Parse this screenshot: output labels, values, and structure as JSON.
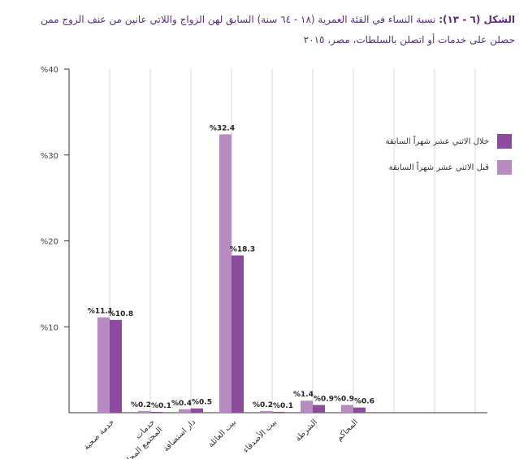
{
  "title": {
    "lead": "الشكل (٦ - ١٣):",
    "text": "نسبة النساء في الفئة العمرية (١٨ - ٦٤ سنة) السابق لهن الزواج واللاتي عانين من عنف الزوج ممن حصلن على خدمات أو اتصلن بالسلطات، مصر، ٢٠١٥"
  },
  "colors": {
    "before": "#b88ac2",
    "during": "#8c4a9e",
    "axis": "#333333",
    "grid": "#d6d6d6"
  },
  "chart_data": {
    "type": "bar",
    "title": "",
    "xlabel": "",
    "ylabel": "",
    "ylim": [
      0,
      40
    ],
    "yticks": [
      10,
      20,
      30,
      40
    ],
    "ytick_labels": [
      "%10",
      "%20",
      "%30",
      "%40"
    ],
    "grid": "vertical",
    "legend_position": "right",
    "categories": [
      "خدمة صحية",
      "خدمات المجتمع المحلي",
      "دار استضافة",
      "بيت العائلة",
      "بيت الأصدقاء",
      "الشرطة",
      "المحاكم"
    ],
    "series": [
      {
        "name": "قبل الاثني عشر شهراً السابقة",
        "values": [
          11.1,
          0.2,
          0.4,
          32.4,
          0.2,
          1.4,
          0.9
        ],
        "labels": [
          "%11.1",
          "%0.2",
          "%0.4",
          "%32.4",
          "%0.2",
          "%1.4",
          "%0.9"
        ]
      },
      {
        "name": "خلال الاثني عشر شهراً السابقة",
        "values": [
          10.8,
          0.1,
          0.5,
          18.3,
          0.1,
          0.9,
          0.6
        ],
        "labels": [
          "%10.8",
          "%0.1",
          "%0.5",
          "%18.3",
          "%0.1",
          "%0.9",
          "%0.6"
        ]
      }
    ]
  }
}
